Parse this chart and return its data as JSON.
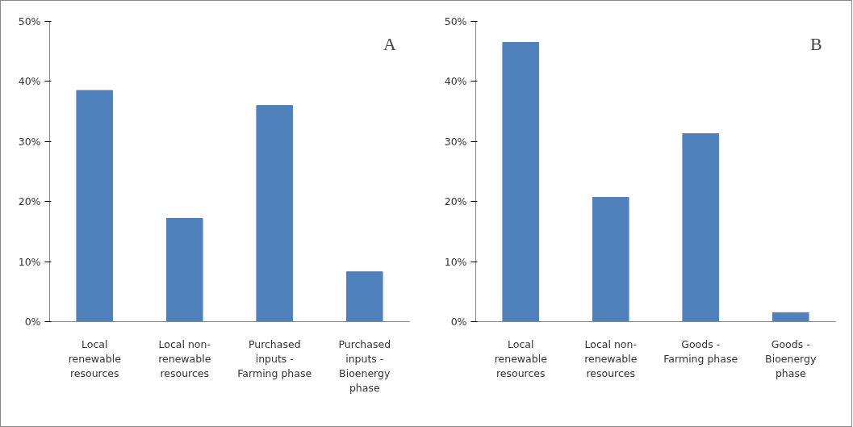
{
  "chart_data": [
    {
      "type": "bar",
      "categories": [
        "Local renewable resources",
        "Local non-renewable resources",
        "Purchased inputs - Farming phase",
        "Purchased inputs - Bioenergy phase"
      ],
      "values": [
        38.5,
        17.2,
        36.0,
        8.3
      ],
      "color": "#4f81bd",
      "ylim": [
        0,
        50
      ],
      "yticks": [
        {
          "value": 0,
          "label": "0%"
        },
        {
          "value": 10,
          "label": "10%"
        },
        {
          "value": 20,
          "label": "20%"
        },
        {
          "value": 30,
          "label": "30%"
        },
        {
          "value": 40,
          "label": "40%"
        },
        {
          "value": 50,
          "label": "50%"
        }
      ],
      "grid": false,
      "annotations": [
        "A"
      ]
    },
    {
      "type": "bar",
      "categories": [
        "Local renewable resources",
        "Local non-renewable resources",
        "Goods - Farming phase",
        "Goods -  Bioenergy phase"
      ],
      "values": [
        46.5,
        20.7,
        31.3,
        1.5
      ],
      "color": "#4f81bd",
      "ylim": [
        0,
        50
      ],
      "yticks": [
        {
          "value": 0,
          "label": "0%"
        },
        {
          "value": 10,
          "label": "10%"
        },
        {
          "value": 20,
          "label": "20%"
        },
        {
          "value": 30,
          "label": "30%"
        },
        {
          "value": 40,
          "label": "40%"
        },
        {
          "value": 50,
          "label": "50%"
        }
      ],
      "grid": false,
      "annotations": [
        "B"
      ]
    }
  ]
}
